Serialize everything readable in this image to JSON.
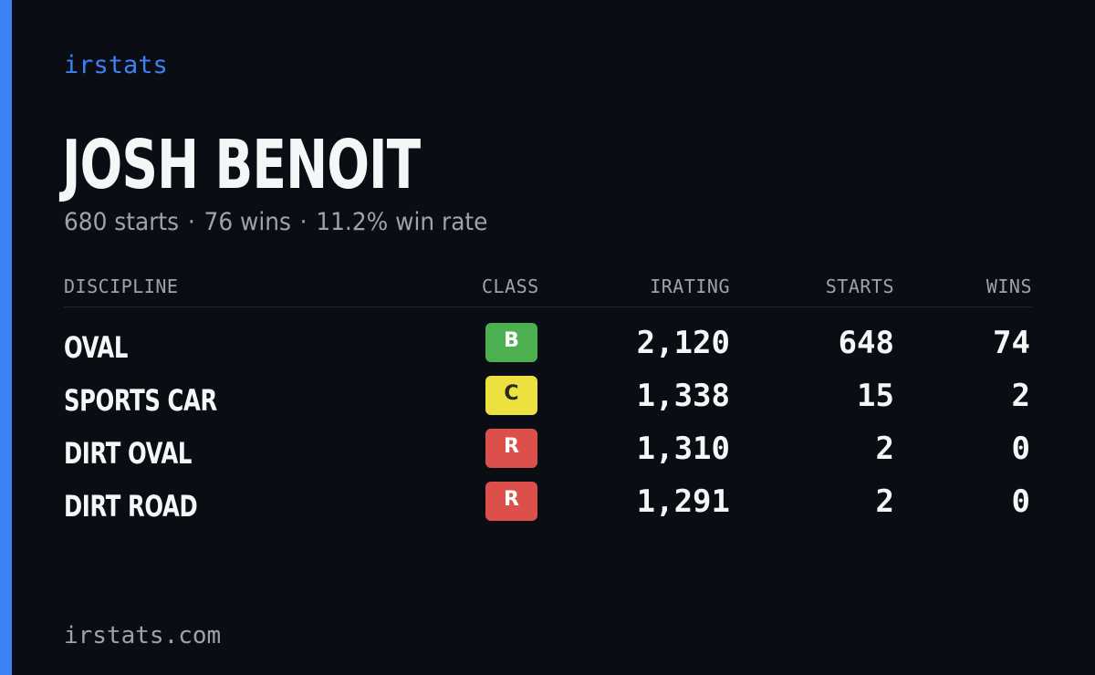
{
  "brand": "irstats",
  "driver": {
    "name": "JOSH BENOIT",
    "starts": "680 starts",
    "wins": "76 wins",
    "win_rate": "11.2% win rate",
    "separator": "·"
  },
  "table": {
    "headers": {
      "discipline": "DISCIPLINE",
      "class": "CLASS",
      "irating": "IRATING",
      "starts": "STARTS",
      "wins": "WINS"
    },
    "rows": [
      {
        "discipline": "OVAL",
        "class": "B",
        "class_bg": "#4caf50",
        "class_fg": "#ffffff",
        "irating": "2,120",
        "starts": "648",
        "wins": "74"
      },
      {
        "discipline": "SPORTS CAR",
        "class": "C",
        "class_bg": "#ece13f",
        "class_fg": "#2a2a1a",
        "irating": "1,338",
        "starts": "15",
        "wins": "2"
      },
      {
        "discipline": "DIRT OVAL",
        "class": "R",
        "class_bg": "#dc4f4b",
        "class_fg": "#ffffff",
        "irating": "1,310",
        "starts": "2",
        "wins": "0"
      },
      {
        "discipline": "DIRT ROAD",
        "class": "R",
        "class_bg": "#dc4f4b",
        "class_fg": "#ffffff",
        "irating": "1,291",
        "starts": "2",
        "wins": "0"
      }
    ]
  },
  "footer": "irstats.com",
  "colors": {
    "background": "#0a0d14",
    "accent": "#3b82f6",
    "text": "#f5f6f8",
    "muted": "#9ca3af"
  }
}
